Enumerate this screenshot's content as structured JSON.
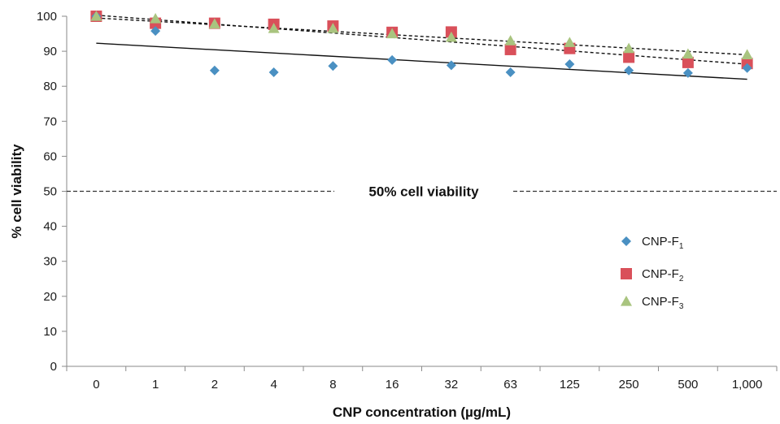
{
  "chart_data": {
    "type": "scatter",
    "categories": [
      "0",
      "1",
      "2",
      "4",
      "8",
      "16",
      "32",
      "63",
      "125",
      "250",
      "500",
      "1,000"
    ],
    "xlabel": "CNP concentration (µg/mL)",
    "ylabel": "% cell viability",
    "ylim": [
      0,
      100
    ],
    "yticks": [
      0,
      10,
      20,
      30,
      40,
      50,
      60,
      70,
      80,
      90,
      100
    ],
    "grid": false,
    "legend_position": "right",
    "series": [
      {
        "name": "CNP-F",
        "subscript": "1",
        "marker": "diamond",
        "color": "#4a90c2",
        "values": [
          100,
          95.8,
          84.5,
          84.0,
          85.8,
          87.5,
          86.0,
          84.0,
          86.3,
          84.5,
          83.8,
          85.2
        ],
        "trendline": {
          "style": "solid",
          "start": 92.3,
          "end": 82.0
        }
      },
      {
        "name": "CNP-F",
        "subscript": "2",
        "marker": "square",
        "color": "#d9505a",
        "values": [
          100,
          98.0,
          98.0,
          97.7,
          97.2,
          95.4,
          95.5,
          90.5,
          90.8,
          88.3,
          86.8,
          86.5
        ],
        "trendline": {
          "style": "dashed",
          "start": 100.3,
          "end": 86.3
        }
      },
      {
        "name": "CNP-F",
        "subscript": "3",
        "marker": "triangle",
        "color": "#a9c47f",
        "values": [
          100,
          99.3,
          97.8,
          96.5,
          96.5,
          95.0,
          94.0,
          93.0,
          92.5,
          90.8,
          89.2,
          89.0
        ],
        "trendline": {
          "style": "dashed",
          "start": 99.5,
          "end": 89.0
        }
      }
    ],
    "annotations": [
      {
        "text": "50% cell viability",
        "y": 50,
        "line_style": "dashed"
      }
    ]
  }
}
